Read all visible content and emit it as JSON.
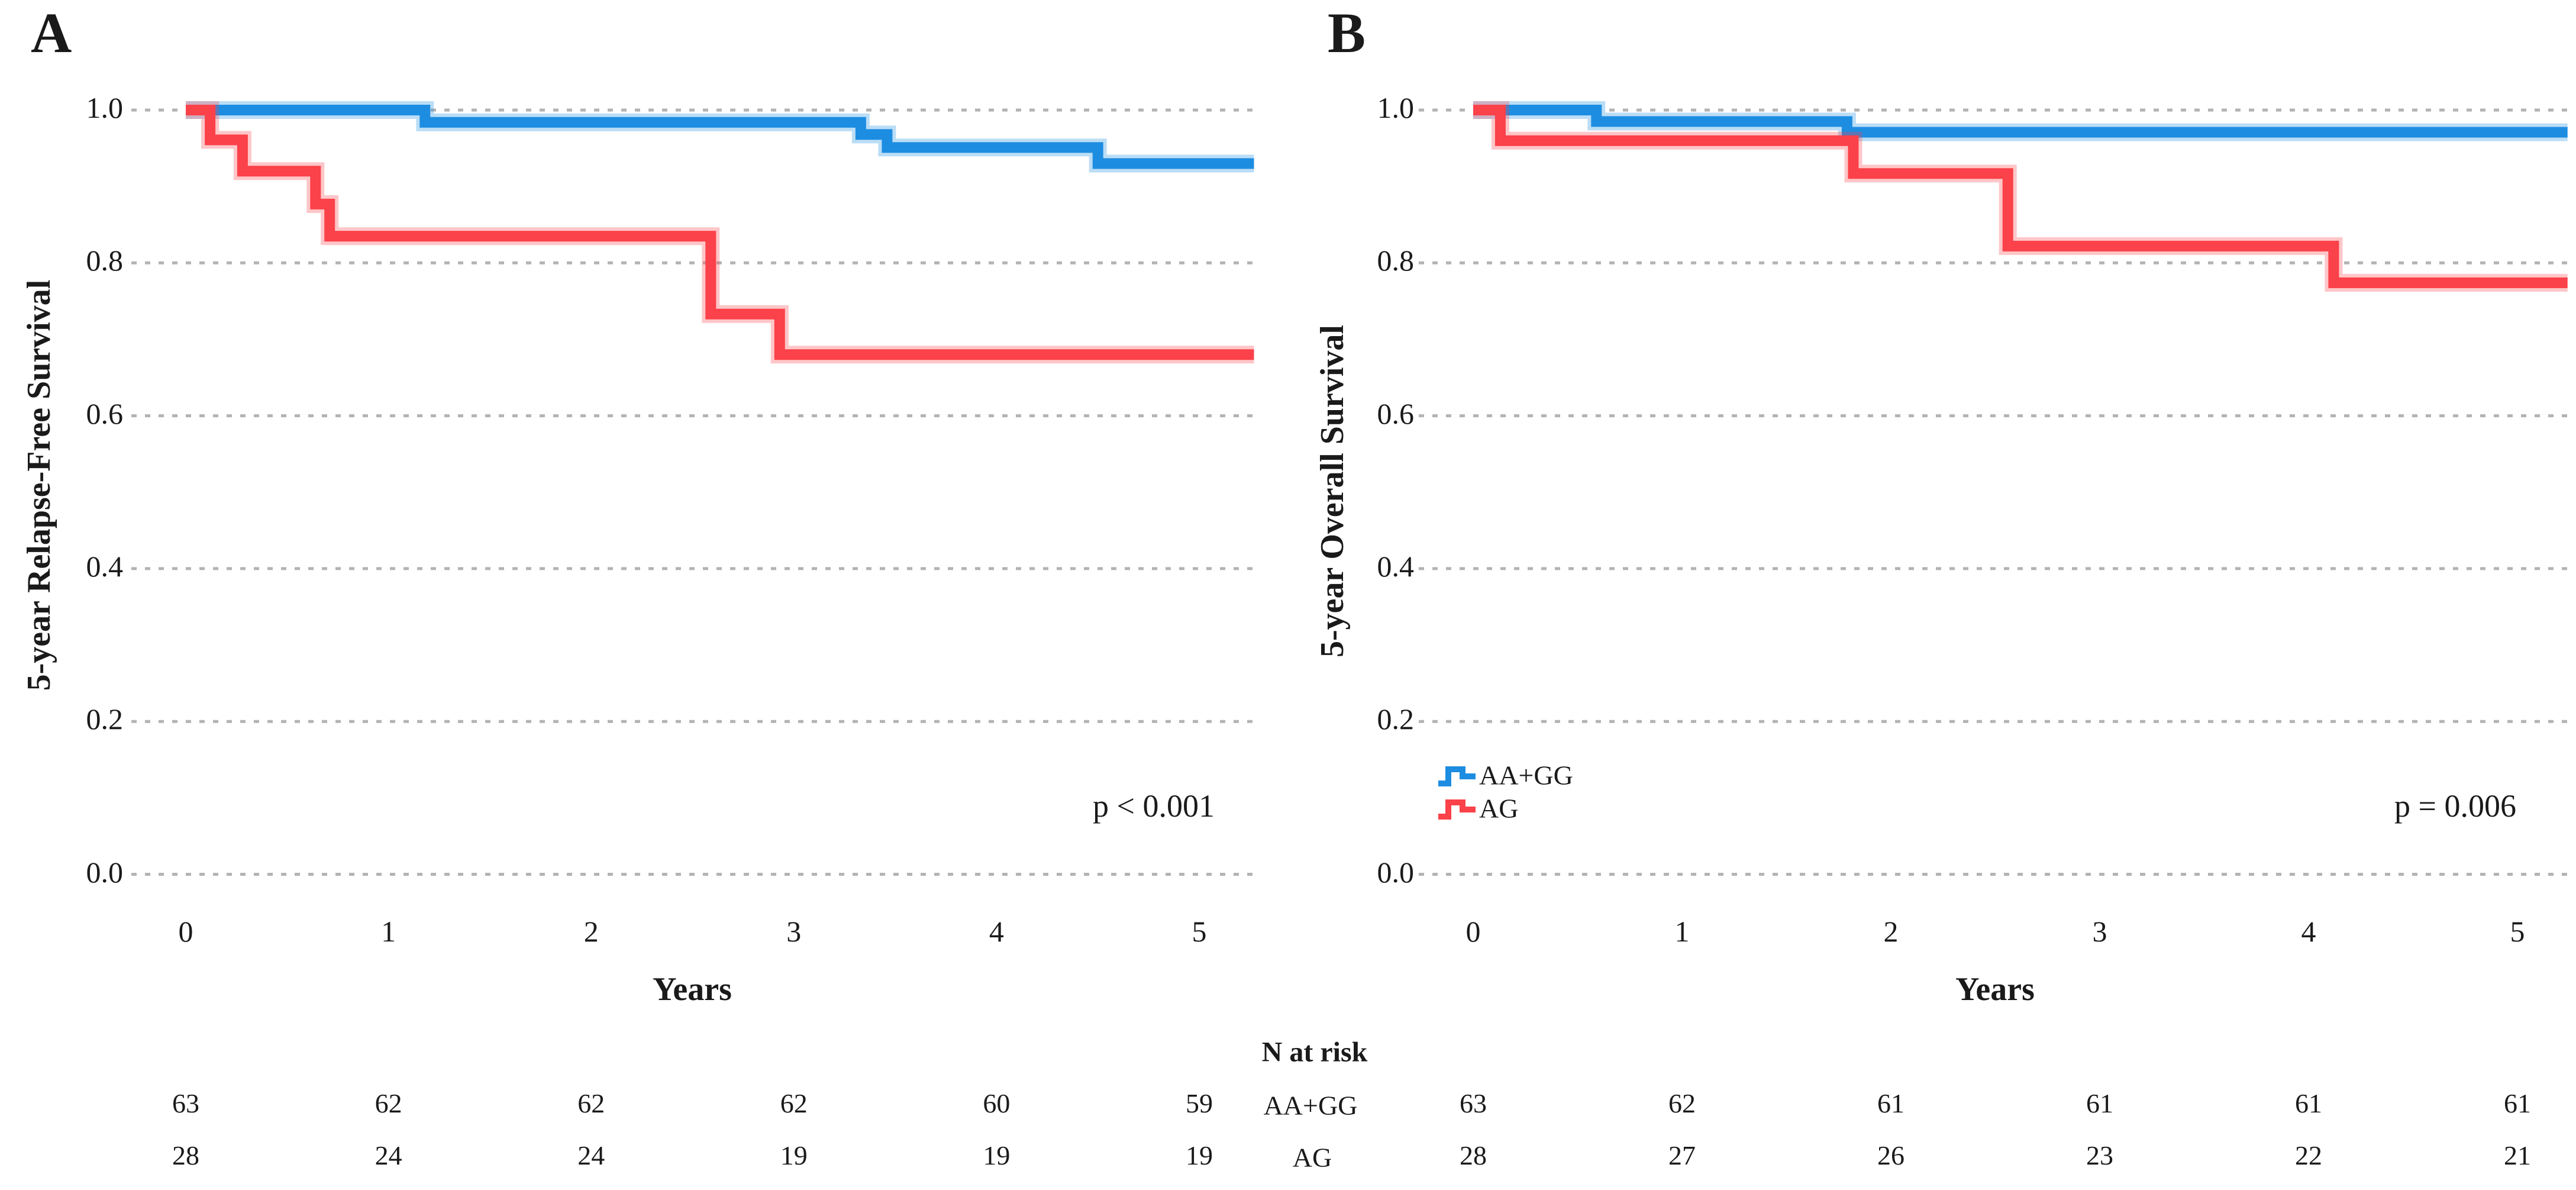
{
  "n_at_risk_header": "N at risk",
  "chart_data": [
    {
      "type": "line",
      "subtype": "kaplan-meier-step",
      "title": "A",
      "xlabel": "Years",
      "ylabel": "5-year Relapse-Free Survival",
      "annotation": "p < 0.001",
      "xlim": [
        0,
        5.3
      ],
      "ylim": [
        0.0,
        1.0
      ],
      "x_ticks": [
        "0",
        "1",
        "2",
        "3",
        "4",
        "5"
      ],
      "y_ticks": [
        "1.0",
        "0.8",
        "0.6",
        "0.4",
        "0.2",
        "0.0"
      ],
      "grid": "dashed-horizontal",
      "legend_position": "none",
      "series": [
        {
          "name": "AA+GG",
          "color": "#1d8de2",
          "steps": [
            [
              0,
              1.0
            ],
            [
              1.18,
              1.0
            ],
            [
              1.18,
              0.984
            ],
            [
              3.33,
              0.984
            ],
            [
              3.33,
              0.968
            ],
            [
              3.46,
              0.968
            ],
            [
              3.46,
              0.951
            ],
            [
              4.5,
              0.951
            ],
            [
              4.5,
              0.93
            ],
            [
              5.27,
              0.93
            ]
          ]
        },
        {
          "name": "AG",
          "color": "#fb4149",
          "steps": [
            [
              0,
              1.0
            ],
            [
              0.12,
              1.0
            ],
            [
              0.12,
              0.961
            ],
            [
              0.28,
              0.961
            ],
            [
              0.28,
              0.92
            ],
            [
              0.64,
              0.92
            ],
            [
              0.64,
              0.877
            ],
            [
              0.71,
              0.877
            ],
            [
              0.71,
              0.835
            ],
            [
              2.59,
              0.835
            ],
            [
              2.59,
              0.733
            ],
            [
              2.93,
              0.733
            ],
            [
              2.93,
              0.68
            ],
            [
              5.27,
              0.68
            ]
          ]
        }
      ],
      "n_at_risk": {
        "times": [
          0,
          1,
          2,
          3,
          4,
          5
        ],
        "rows": [
          {
            "label": "AA+GG",
            "values": [
              63,
              62,
              62,
              62,
              60,
              59
            ]
          },
          {
            "label": "AG",
            "values": [
              28,
              24,
              24,
              19,
              19,
              19
            ]
          }
        ]
      }
    },
    {
      "type": "line",
      "subtype": "kaplan-meier-step",
      "title": "B",
      "xlabel": "Years",
      "ylabel": "5-year Overall Survival",
      "annotation": "p = 0.006",
      "xlim": [
        0,
        5.3
      ],
      "ylim": [
        0.0,
        1.0
      ],
      "x_ticks": [
        "0",
        "1",
        "2",
        "3",
        "4",
        "5"
      ],
      "y_ticks": [
        "1.0",
        "0.8",
        "0.6",
        "0.4",
        "0.2",
        "0.0"
      ],
      "grid": "dashed-horizontal",
      "legend_position": "inside-lower-left",
      "series": [
        {
          "name": "AA+GG",
          "color": "#1d8de2",
          "steps": [
            [
              0,
              1.0
            ],
            [
              0.59,
              1.0
            ],
            [
              0.59,
              0.985
            ],
            [
              1.79,
              0.985
            ],
            [
              1.79,
              0.971
            ],
            [
              5.24,
              0.971
            ]
          ]
        },
        {
          "name": "AG",
          "color": "#fb4149",
          "steps": [
            [
              0,
              1.0
            ],
            [
              0.13,
              1.0
            ],
            [
              0.13,
              0.96
            ],
            [
              1.82,
              0.96
            ],
            [
              1.82,
              0.917
            ],
            [
              2.56,
              0.917
            ],
            [
              2.56,
              0.822
            ],
            [
              4.12,
              0.822
            ],
            [
              4.12,
              0.774
            ],
            [
              5.24,
              0.774
            ]
          ]
        }
      ],
      "n_at_risk": {
        "times": [
          0,
          1,
          2,
          3,
          4,
          5
        ],
        "rows": [
          {
            "label": "AA+GG",
            "values": [
              63,
              62,
              61,
              61,
              61,
              61
            ]
          },
          {
            "label": "AG",
            "values": [
              28,
              27,
              26,
              23,
              22,
              21
            ]
          }
        ]
      }
    }
  ],
  "style": {
    "grid_color": "#b3b3b3",
    "text_color": "#1a1a1a"
  }
}
